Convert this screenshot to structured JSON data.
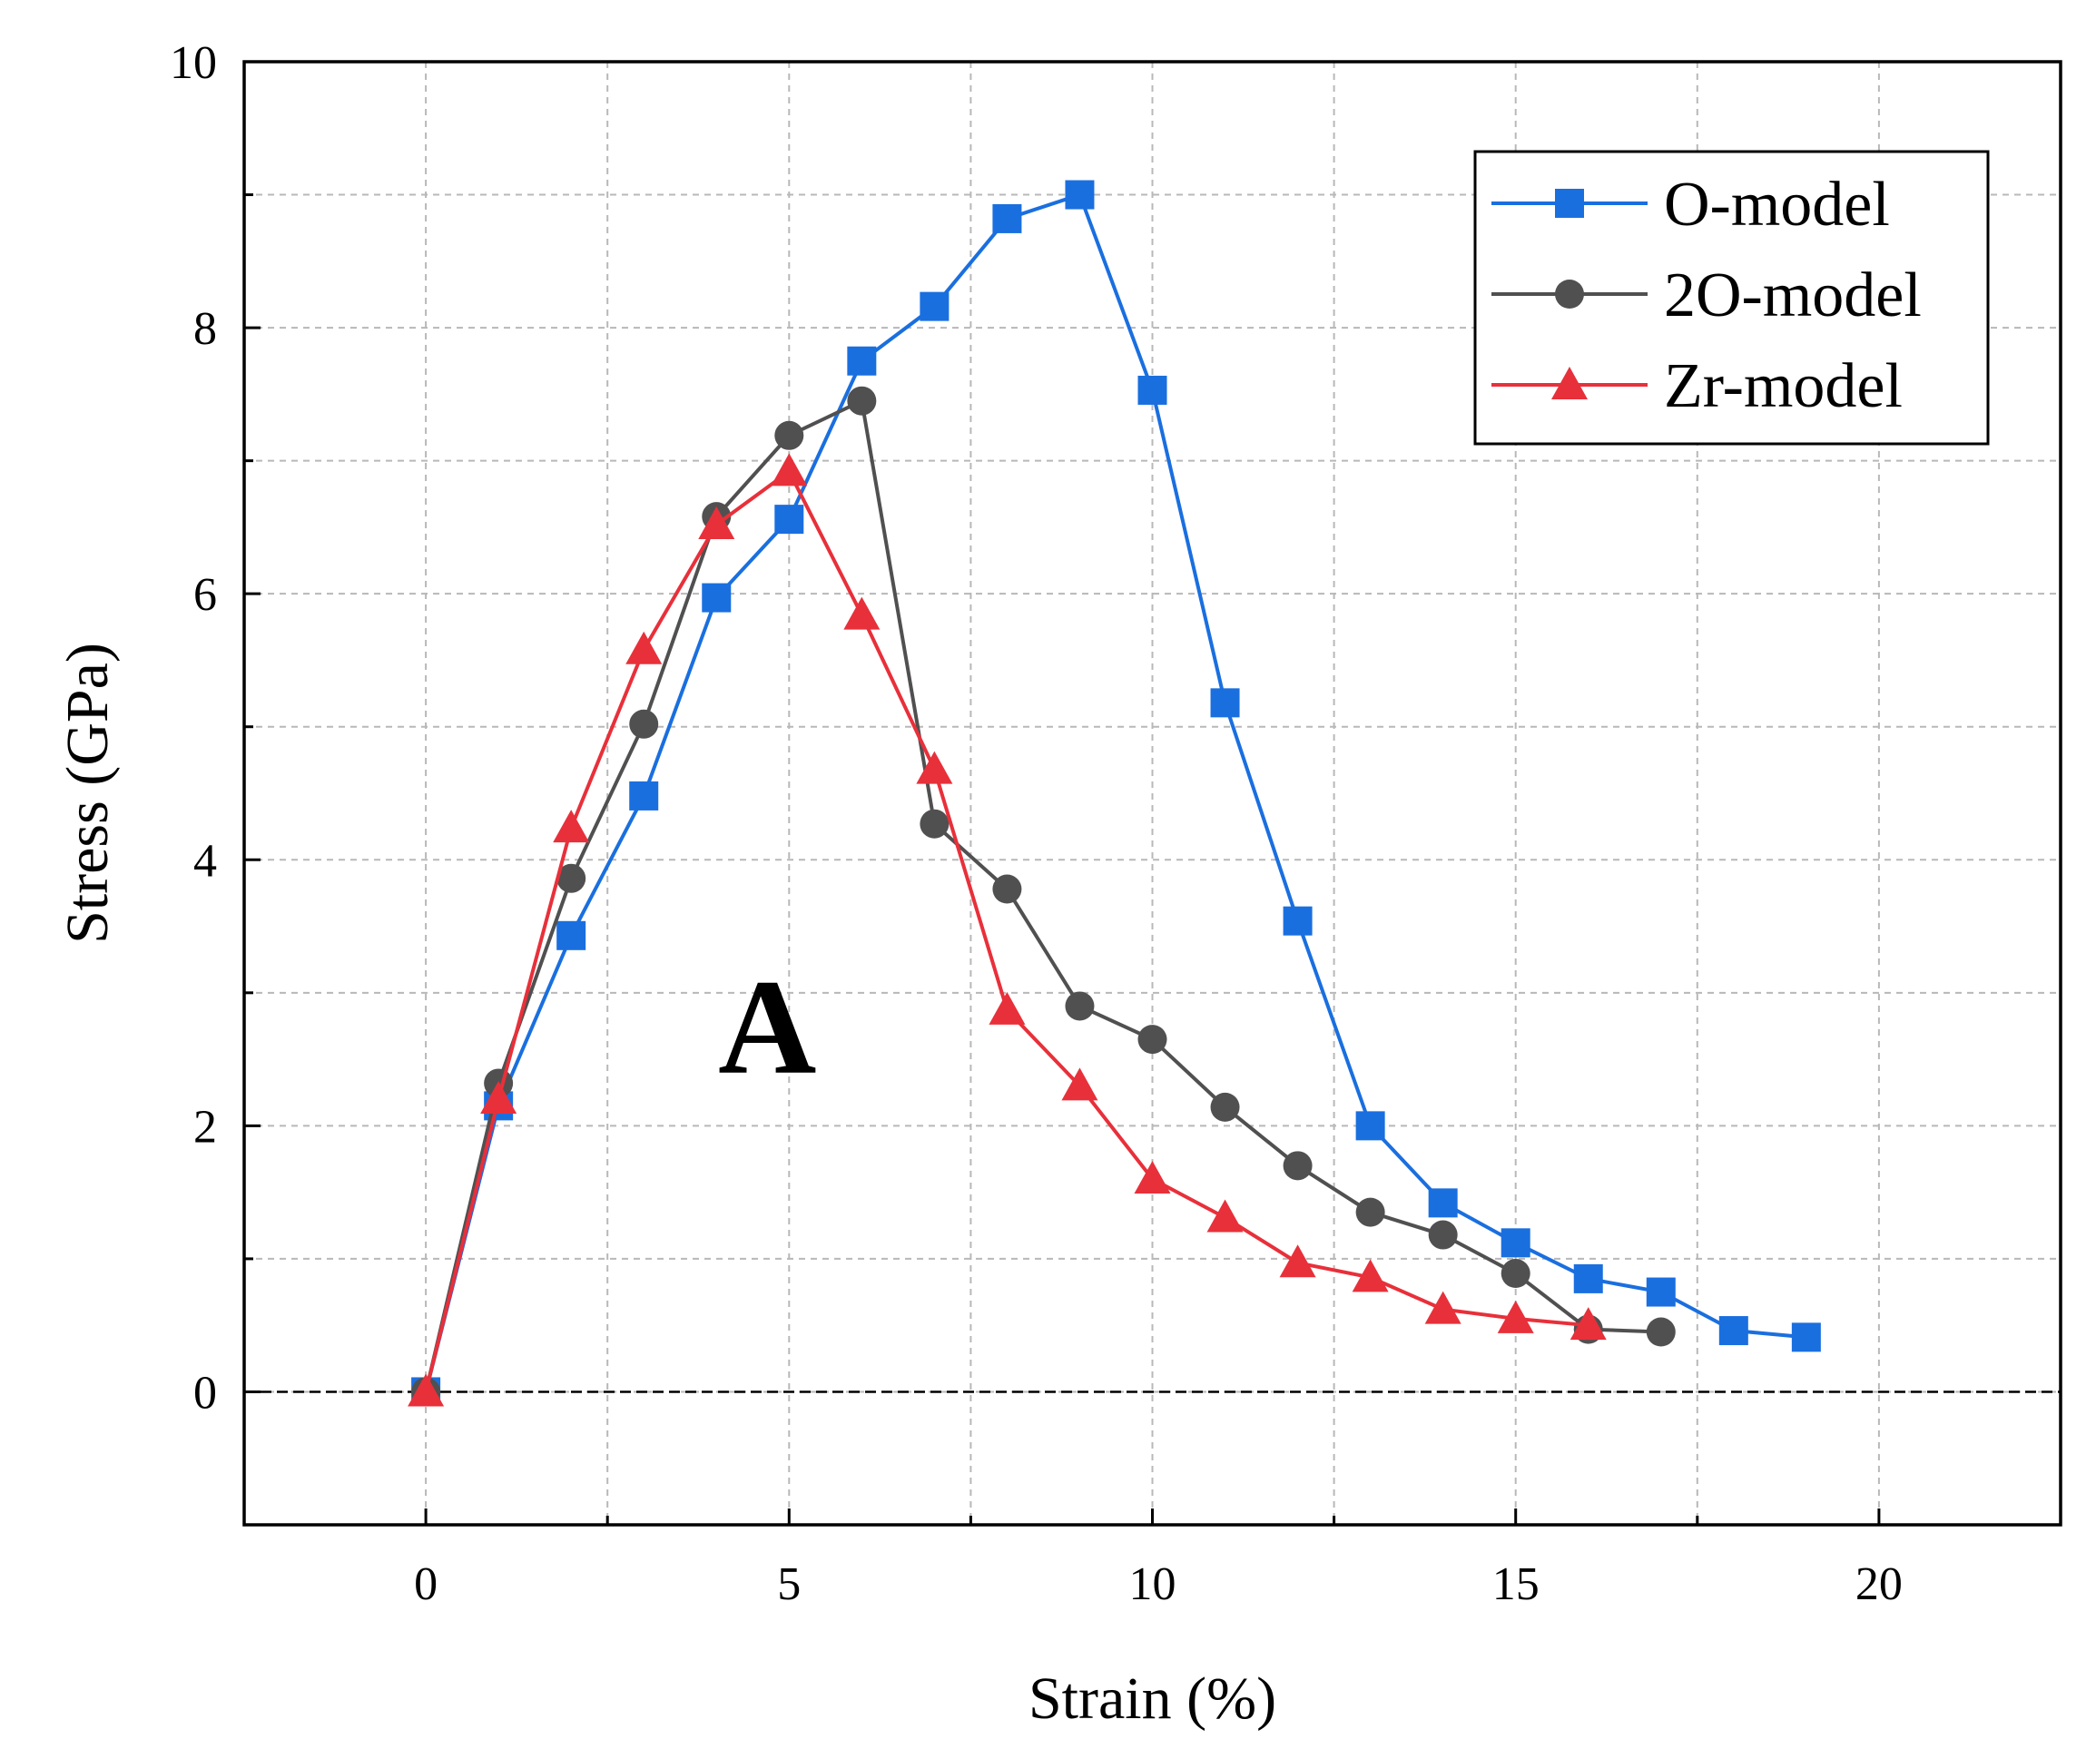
{
  "chart_data": {
    "type": "line",
    "title": "",
    "xlabel": "Strain (%)",
    "ylabel": "Stress (GPa)",
    "xlim": [
      -2.5,
      22.5
    ],
    "ylim": [
      -1,
      10
    ],
    "xticks": [
      0,
      5,
      10,
      15,
      20
    ],
    "yticks": [
      0,
      2,
      4,
      6,
      8,
      10
    ],
    "grid": true,
    "legend_position": "top-right",
    "annotation": "A",
    "series": [
      {
        "name": "O-model",
        "color": "#1a6fdf",
        "marker": "square",
        "x": [
          0,
          1,
          2,
          3,
          4,
          5,
          6,
          7,
          8,
          9,
          10,
          11,
          12,
          13,
          14,
          15,
          16,
          17,
          18,
          19
        ],
        "y": [
          0,
          2.15,
          3.43,
          4.48,
          5.97,
          6.56,
          7.75,
          8.16,
          8.82,
          9.0,
          7.53,
          5.18,
          3.54,
          2.0,
          1.42,
          1.12,
          0.85,
          0.75,
          0.46,
          0.41
        ]
      },
      {
        "name": "2O-model",
        "color": "#505050",
        "marker": "circle",
        "x": [
          0,
          1,
          2,
          3,
          4,
          5,
          6,
          7,
          8,
          9,
          10,
          11,
          12,
          13,
          14,
          15,
          16,
          17
        ],
        "y": [
          0,
          2.32,
          3.86,
          5.02,
          6.58,
          7.19,
          7.45,
          4.27,
          3.78,
          2.9,
          2.65,
          2.14,
          1.7,
          1.35,
          1.18,
          0.89,
          0.47,
          0.45
        ]
      },
      {
        "name": "Zr-model",
        "color": "#e8303a",
        "marker": "triangle",
        "x": [
          0,
          1,
          2,
          3,
          4,
          5,
          6,
          7,
          8,
          9,
          10,
          11,
          12,
          13,
          14,
          15,
          16
        ],
        "y": [
          0,
          2.2,
          4.24,
          5.58,
          6.52,
          6.92,
          5.84,
          4.68,
          2.87,
          2.3,
          1.6,
          1.31,
          0.97,
          0.86,
          0.62,
          0.55,
          0.5
        ]
      }
    ]
  }
}
